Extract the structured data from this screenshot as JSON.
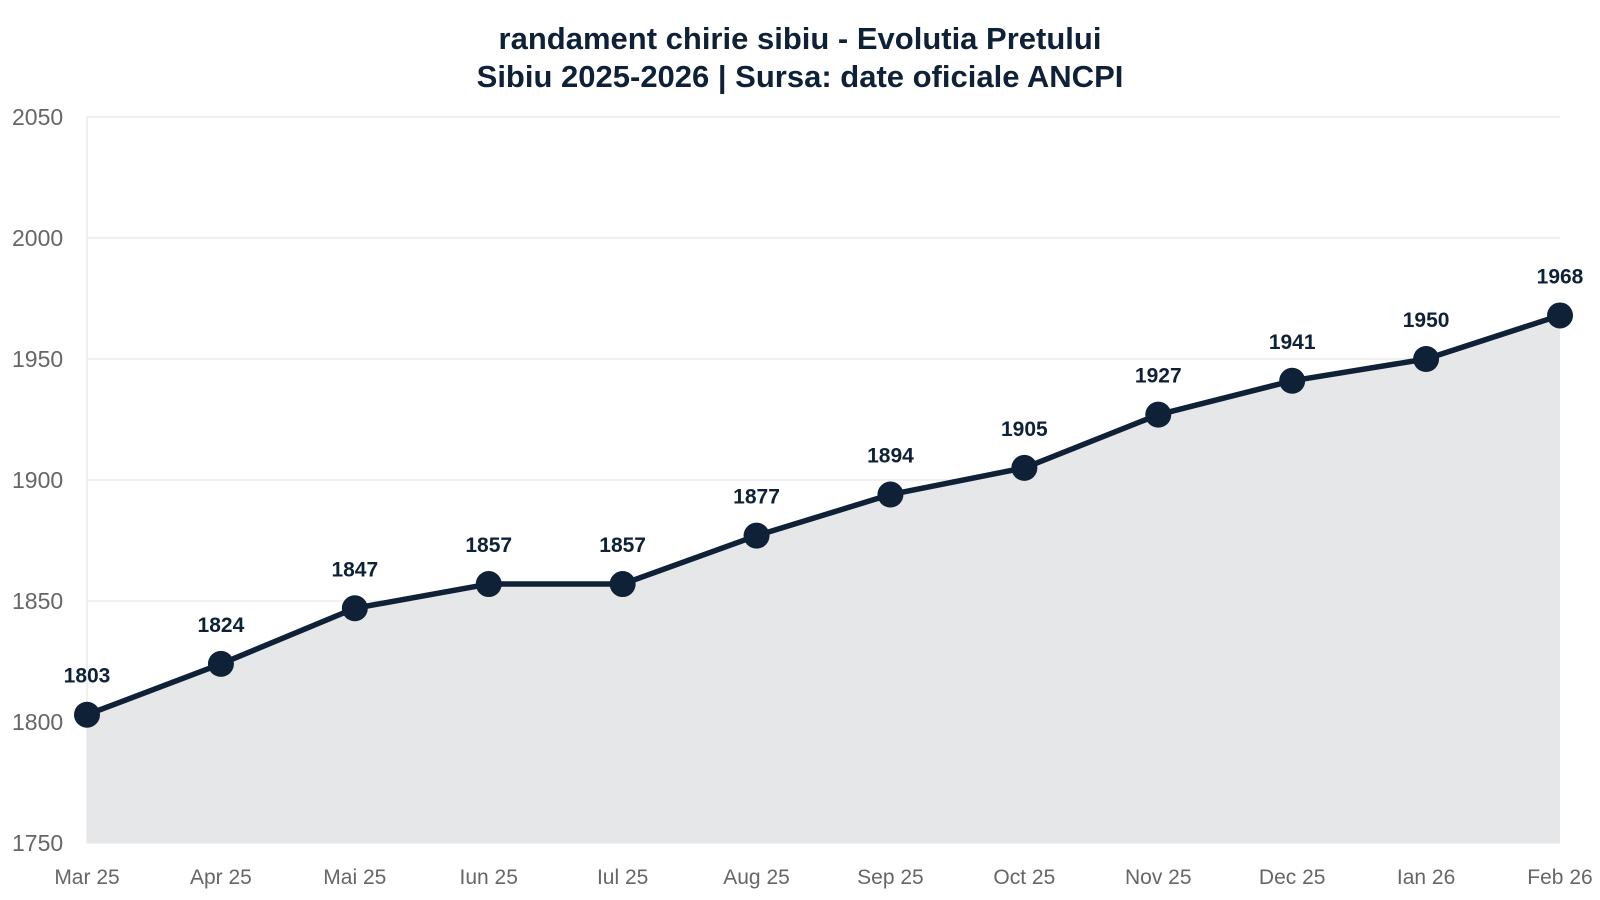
{
  "chart_data": {
    "type": "area",
    "title": "randament chirie sibiu - Evolutia Pretului",
    "subtitle": "Sibiu 2025-2026 | Sursa: date oficiale ANCPI",
    "xlabel": "",
    "ylabel": "",
    "categories": [
      "Mar 25",
      "Apr 25",
      "Mai 25",
      "Iun 25",
      "Iul 25",
      "Aug 25",
      "Sep 25",
      "Oct 25",
      "Nov 25",
      "Dec 25",
      "Ian 26",
      "Feb 26"
    ],
    "series": [
      {
        "values": [
          1803,
          1824,
          1847,
          1857,
          1857,
          1877,
          1894,
          1905,
          1927,
          1941,
          1950,
          1968
        ],
        "labels": [
          "1803",
          "1824",
          "1847",
          "1857",
          "1857",
          "1877",
          "1894",
          "1905",
          "1927",
          "1941",
          "1950",
          "1968"
        ]
      }
    ],
    "ylim": [
      1750,
      2050
    ],
    "yticks": [
      1750,
      1800,
      1850,
      1900,
      1950,
      2000,
      2050
    ],
    "ytick_labels": [
      "1750",
      "1800",
      "1850",
      "1900",
      "1950",
      "2000",
      "2050"
    ],
    "grid": true,
    "legend": "none",
    "colors": {
      "line": "#0f2137",
      "marker": "#0f2137",
      "fill": "#e6e7e9",
      "grid": "#ececec",
      "tick_text": "#666666",
      "title_text": "#0f2137",
      "label_text": "#0f2137"
    }
  }
}
